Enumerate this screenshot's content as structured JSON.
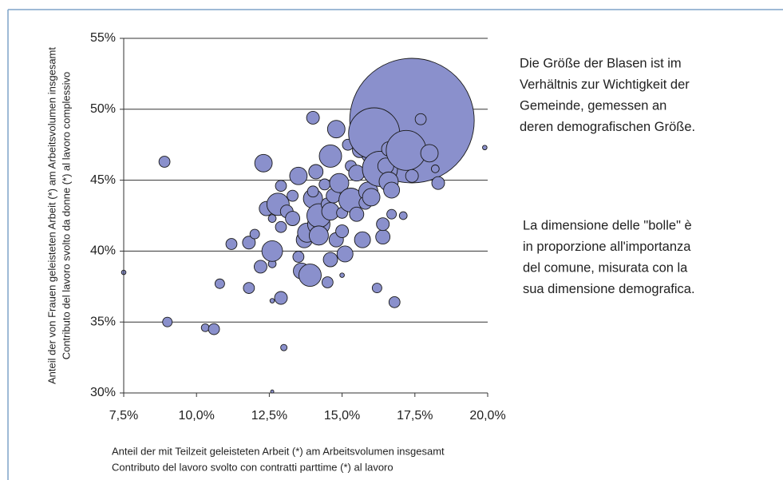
{
  "chart_data": {
    "type": "bubble",
    "y_label": [
      "Anteil der von Frauen geleisteten Arbeit (*) am Arbeitsvolumen insgesamt",
      "Contributo del lavoro svolto da donne (*) al lavoro complessivo"
    ],
    "x_label": [
      "Anteil der mit Teilzeit geleisteten Arbeit (*) am Arbeitsvolumen insgesamt",
      "Contributo del lavoro svolto con contratti parttime (*) al lavoro"
    ],
    "annotations": [
      [
        "Die Größe der Blasen ist im",
        "Verhältnis zur Wichtigkeit der",
        "Gemeinde, gemessen an",
        "deren demografischen Größe."
      ],
      [
        "La dimensione delle \"bolle\" è",
        "in proporzione all'importanza",
        "del comune, misurata con la",
        "sua dimensione demografica."
      ]
    ],
    "color": "#8a90cc",
    "grid": true,
    "xlim": [
      7.5,
      20
    ],
    "ylim": [
      30,
      55
    ],
    "xticks": [
      {
        "value": 7.5,
        "label": "7,5%"
      },
      {
        "value": 10,
        "label": "10,0%"
      },
      {
        "value": 12.5,
        "label": "12,5%"
      },
      {
        "value": 15,
        "label": "15,0%"
      },
      {
        "value": 17.5,
        "label": "17,5%"
      },
      {
        "value": 20,
        "label": "20,0%"
      }
    ],
    "yticks": [
      {
        "value": 30,
        "label": "30%"
      },
      {
        "value": 35,
        "label": "35%"
      },
      {
        "value": 40,
        "label": "40%"
      },
      {
        "value": 45,
        "label": "45%"
      },
      {
        "value": 50,
        "label": "50%"
      },
      {
        "value": 55,
        "label": "55%"
      }
    ],
    "x": [
      17.4,
      7.5,
      9.0,
      8.9,
      10.3,
      10.6,
      10.8,
      11.2,
      11.8,
      12.0,
      11.8,
      12.2,
      12.4,
      12.3,
      12.6,
      12.9,
      13.0,
      12.6,
      12.6,
      12.6,
      12.6,
      12.9,
      12.8,
      12.9,
      13.1,
      13.3,
      13.3,
      13.5,
      13.7,
      13.8,
      13.5,
      13.6,
      13.9,
      14.0,
      14.1,
      14.0,
      14.2,
      14.2,
      14.0,
      14.4,
      14.5,
      14.7,
      14.6,
      14.2,
      14.6,
      14.5,
      14.8,
      14.6,
      14.8,
      14.9,
      15.0,
      15.0,
      15.1,
      15.0,
      15.3,
      15.3,
      15.2,
      15.5,
      15.5,
      15.6,
      15.9,
      15.7,
      15.8,
      16.0,
      16.1,
      16.0,
      16.3,
      16.4,
      16.2,
      16.4,
      16.5,
      16.6,
      16.6,
      16.7,
      16.8,
      16.7,
      16.9,
      17.2,
      17.4,
      17.1,
      17.7,
      18.0,
      18.2,
      18.3,
      19.9
    ],
    "values": [
      49.2,
      38.5,
      35.0,
      46.3,
      34.6,
      34.5,
      37.7,
      40.5,
      40.6,
      41.2,
      37.4,
      38.9,
      43.0,
      46.2,
      36.5,
      36.7,
      33.2,
      30.1,
      39.1,
      42.3,
      40.0,
      41.7,
      43.3,
      44.6,
      42.8,
      43.9,
      42.3,
      45.3,
      40.8,
      41.3,
      39.6,
      38.6,
      38.3,
      49.4,
      45.6,
      43.7,
      41.9,
      42.5,
      44.2,
      44.7,
      43.3,
      43.9,
      42.8,
      41.1,
      39.4,
      37.8,
      40.8,
      46.7,
      48.6,
      44.8,
      42.7,
      41.4,
      39.8,
      38.3,
      43.6,
      46.0,
      47.5,
      42.6,
      45.5,
      47.1,
      44.2,
      40.8,
      43.4,
      46.2,
      48.3,
      43.8,
      45.8,
      41.0,
      37.4,
      41.9,
      46.0,
      47.2,
      44.9,
      42.6,
      36.4,
      44.3,
      47.3,
      47.1,
      45.3,
      42.5,
      49.3,
      46.9,
      45.8,
      44.8,
      47.3
    ],
    "sizes": [
      1521,
      2,
      9,
      12,
      6,
      12,
      9,
      12,
      16,
      9,
      12,
      16,
      20,
      30,
      2,
      16,
      4,
      1,
      6,
      6,
      42,
      12,
      49,
      12,
      16,
      12,
      20,
      30,
      25,
      36,
      12,
      25,
      49,
      16,
      20,
      36,
      49,
      56,
      12,
      12,
      16,
      20,
      30,
      36,
      20,
      12,
      20,
      49,
      30,
      36,
      12,
      16,
      25,
      2,
      56,
      12,
      12,
      20,
      25,
      20,
      36,
      25,
      16,
      20,
      256,
      30,
      121,
      20,
      9,
      16,
      25,
      20,
      36,
      9,
      12,
      25,
      36,
      156,
      16,
      6,
      12,
      30,
      6,
      16,
      2
    ]
  }
}
